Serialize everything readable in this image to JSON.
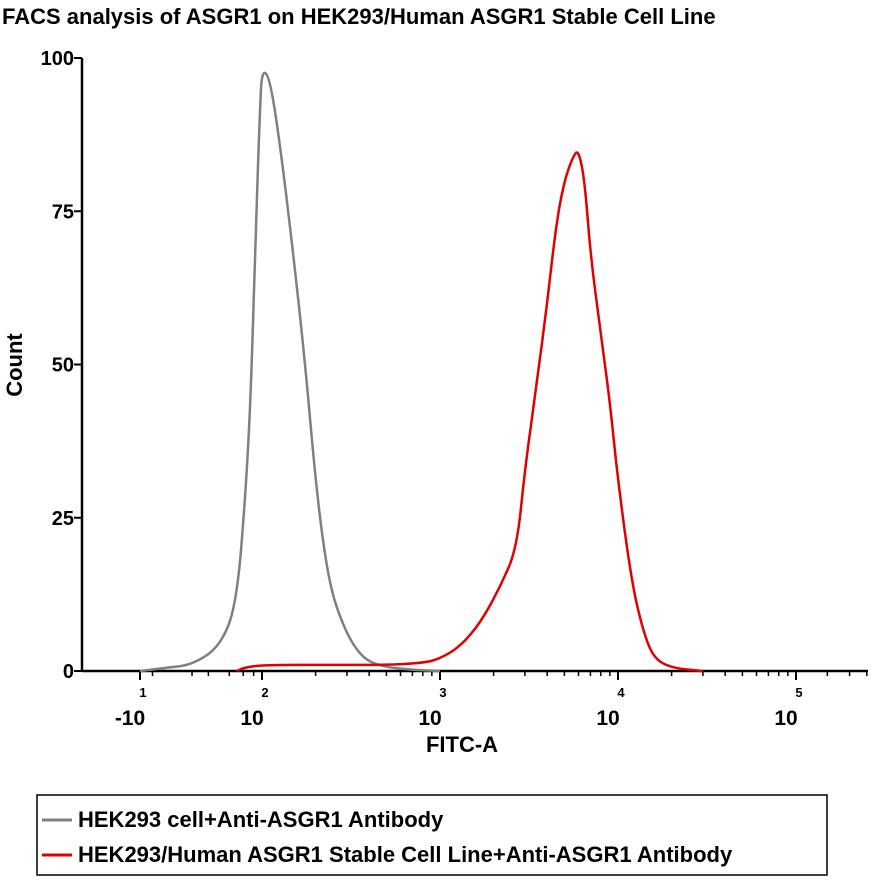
{
  "chart_data": {
    "type": "line",
    "title": "FACS analysis of ASGR1 on HEK293/Human ASGR1 Stable Cell Line",
    "xlabel": "FITC-A",
    "ylabel": "Count",
    "x_scale": "logicle",
    "ylim": [
      0,
      100
    ],
    "yticks": [
      0,
      25,
      50,
      75,
      100
    ],
    "xticks": [
      {
        "base": "-10",
        "exp": "1",
        "value": -10
      },
      {
        "base": "10",
        "exp": "2",
        "value": 100
      },
      {
        "base": "10",
        "exp": "3",
        "value": 1000
      },
      {
        "base": "10",
        "exp": "4",
        "value": 10000
      },
      {
        "base": "10",
        "exp": "5",
        "value": 100000
      }
    ],
    "legend_position": "bottom",
    "grid": false,
    "series": [
      {
        "name": "HEK293 cell+Anti-ASGR1 Antibody",
        "color": "#808080",
        "points": [
          [
            -10,
            0
          ],
          [
            0,
            0.5
          ],
          [
            10,
            1
          ],
          [
            30,
            4
          ],
          [
            50,
            11
          ],
          [
            65,
            30
          ],
          [
            75,
            47
          ],
          [
            85,
            73
          ],
          [
            95,
            92
          ],
          [
            100,
            98
          ],
          [
            110,
            97
          ],
          [
            125,
            87
          ],
          [
            150,
            68
          ],
          [
            175,
            50
          ],
          [
            200,
            31
          ],
          [
            225,
            19
          ],
          [
            250,
            12
          ],
          [
            300,
            6
          ],
          [
            350,
            3
          ],
          [
            400,
            1.5
          ],
          [
            500,
            0.6
          ],
          [
            700,
            0.2
          ],
          [
            1000,
            0
          ]
        ]
      },
      {
        "name": "HEK293/Human ASGR1 Stable Cell Line+Anti-ASGR1 Antibody",
        "color": "#e00000",
        "points": [
          [
            50,
            0
          ],
          [
            60,
            0.5
          ],
          [
            100,
            1
          ],
          [
            250,
            1
          ],
          [
            500,
            1
          ],
          [
            800,
            1.3
          ],
          [
            1000,
            2
          ],
          [
            1300,
            4
          ],
          [
            1700,
            8
          ],
          [
            2200,
            14
          ],
          [
            2700,
            20
          ],
          [
            3000,
            33
          ],
          [
            3500,
            47
          ],
          [
            4000,
            60
          ],
          [
            4500,
            73
          ],
          [
            5000,
            80
          ],
          [
            5600,
            84
          ],
          [
            6000,
            85
          ],
          [
            6500,
            80
          ],
          [
            7000,
            68
          ],
          [
            8000,
            55
          ],
          [
            9000,
            44
          ],
          [
            10000,
            31
          ],
          [
            12000,
            14
          ],
          [
            14000,
            6
          ],
          [
            16000,
            2
          ],
          [
            20000,
            0.5
          ],
          [
            30000,
            0
          ]
        ]
      }
    ]
  }
}
